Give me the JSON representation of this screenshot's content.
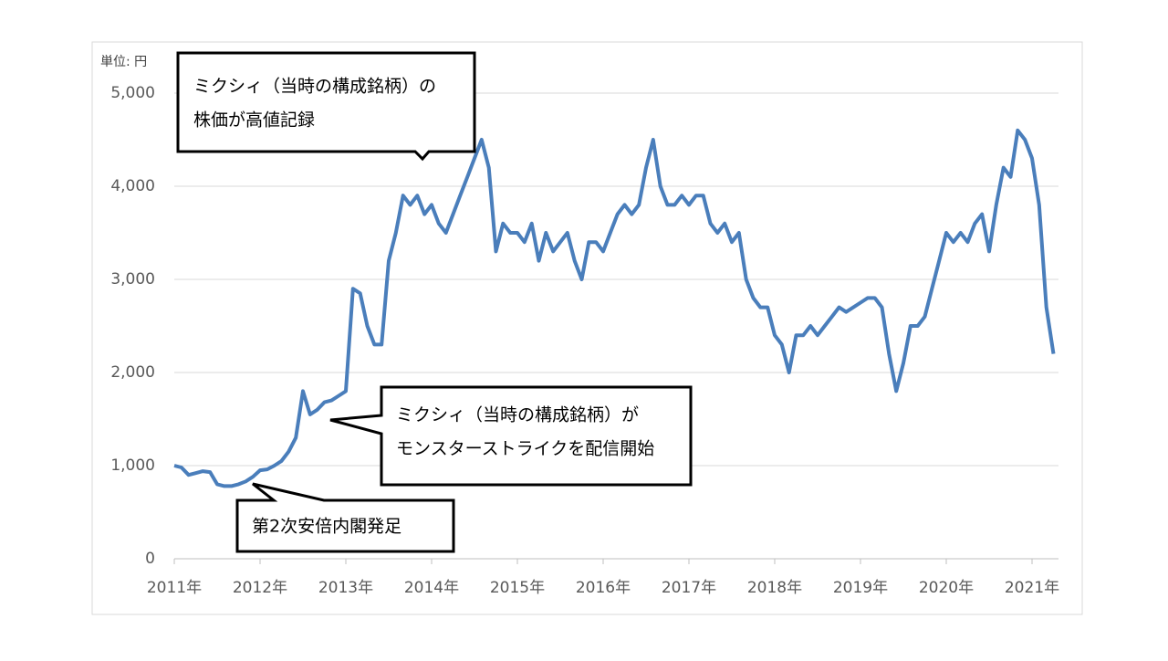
{
  "chart_data": {
    "type": "line",
    "unit_label": "単位: 円",
    "categories": [
      "2011年",
      null,
      null,
      null,
      null,
      null,
      null,
      null,
      null,
      null,
      null,
      null,
      "2012年",
      null,
      null,
      null,
      null,
      null,
      null,
      null,
      null,
      null,
      null,
      null,
      "2013年",
      null,
      null,
      null,
      null,
      null,
      null,
      null,
      null,
      null,
      null,
      null,
      "2014年",
      null,
      null,
      null,
      null,
      null,
      null,
      null,
      null,
      null,
      null,
      null,
      "2015年",
      null,
      null,
      null,
      null,
      null,
      null,
      null,
      null,
      null,
      null,
      null,
      "2016年",
      null,
      null,
      null,
      null,
      null,
      null,
      null,
      null,
      null,
      null,
      null,
      "2017年",
      null,
      null,
      null,
      null,
      null,
      null,
      null,
      null,
      null,
      null,
      null,
      "2018年",
      null,
      null,
      null,
      null,
      null,
      null,
      null,
      null,
      null,
      null,
      null,
      "2019年",
      null,
      null,
      null,
      null,
      null,
      null,
      null,
      null,
      null,
      null,
      null,
      "2020年",
      null,
      null,
      null,
      null,
      null,
      null,
      null,
      null,
      null,
      null,
      null,
      "2021年",
      null,
      null,
      null
    ],
    "series": [
      {
        "color": "#4a7ebb",
        "values": [
          1000,
          980,
          900,
          920,
          940,
          930,
          800,
          780,
          780,
          800,
          830,
          880,
          950,
          960,
          1000,
          1050,
          1150,
          1300,
          1800,
          1550,
          1600,
          1680,
          1700,
          1750,
          1800,
          2900,
          2850,
          2500,
          2300,
          2300,
          3200,
          3500,
          3900,
          3800,
          3900,
          3700,
          3800,
          3600,
          3500,
          3700,
          3900,
          4100,
          4300,
          4500,
          4200,
          3300,
          3600,
          3500,
          3500,
          3400,
          3600,
          3200,
          3500,
          3300,
          3400,
          3500,
          3200,
          3000,
          3400,
          3400,
          3300,
          3500,
          3700,
          3800,
          3700,
          3800,
          4200,
          4500,
          4000,
          3800,
          3800,
          3900,
          3800,
          3900,
          3900,
          3600,
          3500,
          3600,
          3400,
          3500,
          3000,
          2800,
          2700,
          2700,
          2400,
          2300,
          2000,
          2400,
          2400,
          2500,
          2400,
          2500,
          2600,
          2700,
          2650,
          2700,
          2750,
          2800,
          2800,
          2700,
          2200,
          1800,
          2100,
          2500,
          2500,
          2600,
          2900,
          3200,
          3500,
          3400,
          3500,
          3400,
          3600,
          3700,
          3300,
          3800,
          4200,
          4100,
          4600,
          4500,
          4300,
          3800,
          2700,
          2200
        ]
      }
    ],
    "ylim": [
      0,
      5000
    ],
    "yticks": [
      0,
      {
        "value": 1000,
        "label": "1,000"
      },
      {
        "value": 2000,
        "label": "2,000"
      },
      {
        "value": 3000,
        "label": "3,000"
      },
      {
        "value": 4000,
        "label": "4,000"
      },
      {
        "value": 5000,
        "label": "5,000"
      }
    ],
    "grid": true,
    "annotations": [
      {
        "lines": [
          "ミクシィ（当時の構成銘柄）の",
          "株価が高値記録"
        ]
      },
      {
        "lines": [
          "ミクシィ（当時の構成銘柄）が",
          "モンスターストライクを配信開始"
        ]
      },
      {
        "lines": [
          "第2次安倍内閣発足"
        ]
      }
    ]
  }
}
